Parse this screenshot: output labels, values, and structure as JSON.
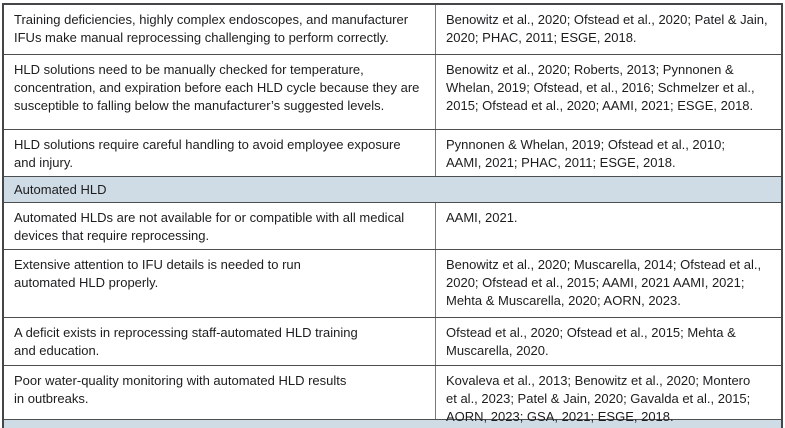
{
  "table": {
    "description": "Two-column table of HLD reprocessing challenges and supporting citations",
    "rows": [
      {
        "type": "item",
        "statement": "Training deficiencies, highly complex endoscopes, and manufacturer\nIFUs make manual reprocessing challenging to perform correctly.",
        "citations": "Benowitz et al., 2020; Ofstead et al., 2020; Patel & Jain,\n2020; PHAC, 2011; ESGE, 2018."
      },
      {
        "type": "item",
        "statement": "HLD solutions need to be manually checked for temperature,\nconcentration, and expiration before each HLD cycle because they are\nsusceptible to falling below the manufacturer’s suggested levels.",
        "citations": "Benowitz et al., 2020; Roberts, 2013; Pynnonen &\nWhelan, 2019; Ofstead, et al., 2016; Schmelzer et al.,\n2015; Ofstead et al., 2020; AAMI, 2021; ESGE, 2018."
      },
      {
        "type": "item",
        "statement": "HLD solutions require careful handling to avoid employee exposure\nand injury.",
        "citations": "Pynnonen & Whelan, 2019; Ofstead et al., 2010;\nAAMI, 2021; PHAC, 2011; ESGE, 2018."
      },
      {
        "type": "section",
        "label": "Automated HLD"
      },
      {
        "type": "item",
        "statement": "Automated HLDs are not available for or compatible with all medical\ndevices that require reprocessing.",
        "citations": "AAMI, 2021."
      },
      {
        "type": "item",
        "statement": "Extensive attention to IFU details is needed to run\nautomated HLD properly.",
        "citations": "Benowitz et al., 2020; Muscarella, 2014; Ofstead et al.,\n2020; Ofstead et al., 2015; AAMI, 2021 AAMI, 2021;\nMehta & Muscarella, 2020; AORN, 2023."
      },
      {
        "type": "item",
        "statement": "A deficit exists in reprocessing staff-automated HLD training\nand education.",
        "citations": "Ofstead et al., 2020; Ofstead et al., 2015; Mehta &\nMuscarella, 2020."
      },
      {
        "type": "item",
        "statement": "Poor water-quality monitoring with automated HLD results\nin outbreaks.",
        "citations": "Kovaleva et al., 2013; Benowitz et al., 2020; Montero\net al., 2023; Patel & Jain, 2020; Gavalda et al., 2015;\nAORN, 2023; GSA, 2021; ESGE, 2018."
      },
      {
        "type": "section-partial",
        "label": ""
      }
    ]
  },
  "colors": {
    "section_header_bg": "#cfdce5",
    "border": "#4d4e50",
    "text": "#1d1d1f",
    "background": "#ffffff"
  }
}
